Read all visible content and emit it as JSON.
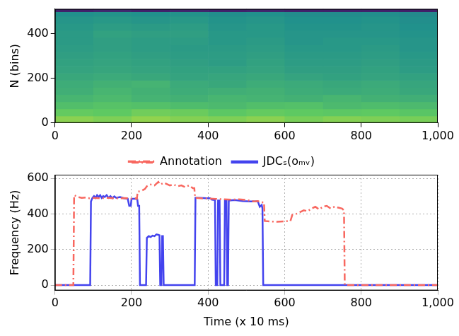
{
  "chart_data": [
    {
      "type": "heatmap",
      "y_label": "N (bins)",
      "xlim": [
        0,
        1000
      ],
      "xticks": [
        0,
        200,
        400,
        600,
        800,
        1000
      ],
      "ylim": [
        0,
        512
      ],
      "yticks": [
        0,
        200,
        400
      ],
      "grid": false,
      "x_edges": [
        0,
        100,
        200,
        300,
        400,
        500,
        600,
        700,
        800,
        900,
        1000
      ],
      "y_edges": [
        0,
        32,
        64,
        96,
        128,
        160,
        192,
        224,
        256,
        288,
        320,
        352,
        384,
        416,
        448,
        480,
        500,
        512
      ],
      "color_range": [
        0,
        1
      ],
      "cells": [
        [
          0.82,
          0.8,
          0.83,
          0.81,
          0.8,
          0.82,
          0.79,
          0.81,
          0.8,
          0.79
        ],
        [
          0.76,
          0.75,
          0.78,
          0.77,
          0.74,
          0.76,
          0.75,
          0.74,
          0.75,
          0.73
        ],
        [
          0.7,
          0.72,
          0.71,
          0.69,
          0.68,
          0.7,
          0.71,
          0.68,
          0.69,
          0.68
        ],
        [
          0.66,
          0.68,
          0.65,
          0.64,
          0.66,
          0.65,
          0.64,
          0.66,
          0.64,
          0.63
        ],
        [
          0.63,
          0.66,
          0.64,
          0.62,
          0.63,
          0.64,
          0.62,
          0.61,
          0.62,
          0.6
        ],
        [
          0.62,
          0.64,
          0.65,
          0.61,
          0.6,
          0.62,
          0.61,
          0.6,
          0.61,
          0.59
        ],
        [
          0.6,
          0.61,
          0.6,
          0.58,
          0.59,
          0.6,
          0.58,
          0.57,
          0.58,
          0.57
        ],
        [
          0.58,
          0.59,
          0.58,
          0.57,
          0.57,
          0.58,
          0.56,
          0.56,
          0.57,
          0.55
        ],
        [
          0.57,
          0.58,
          0.57,
          0.56,
          0.55,
          0.57,
          0.55,
          0.55,
          0.56,
          0.54
        ],
        [
          0.56,
          0.57,
          0.56,
          0.55,
          0.55,
          0.56,
          0.54,
          0.54,
          0.55,
          0.53
        ],
        [
          0.55,
          0.56,
          0.55,
          0.54,
          0.54,
          0.55,
          0.53,
          0.53,
          0.54,
          0.52
        ],
        [
          0.54,
          0.56,
          0.55,
          0.55,
          0.53,
          0.54,
          0.52,
          0.53,
          0.53,
          0.52
        ],
        [
          0.54,
          0.57,
          0.56,
          0.56,
          0.53,
          0.53,
          0.52,
          0.52,
          0.52,
          0.51
        ],
        [
          0.53,
          0.55,
          0.54,
          0.55,
          0.52,
          0.53,
          0.51,
          0.51,
          0.52,
          0.5
        ],
        [
          0.52,
          0.53,
          0.52,
          0.53,
          0.51,
          0.52,
          0.5,
          0.5,
          0.51,
          0.49
        ],
        [
          0.5,
          0.51,
          0.5,
          0.51,
          0.49,
          0.5,
          0.48,
          0.48,
          0.49,
          0.47
        ],
        [
          0.1,
          0.12,
          0.1,
          0.11,
          0.1,
          0.11,
          0.1,
          0.1,
          0.1,
          0.09
        ]
      ]
    },
    {
      "type": "line",
      "x_label": "Time (x 10 ms)",
      "y_label": "Frequency (Hz)",
      "xlim": [
        0,
        1000
      ],
      "xticks": [
        0,
        200,
        400,
        600,
        800,
        1000
      ],
      "ylim": [
        -30,
        620
      ],
      "yticks": [
        0,
        200,
        400,
        600
      ],
      "grid": true,
      "legend": "top",
      "series": [
        {
          "name": "Annotation",
          "color": "#f8675f",
          "line_style": "dashdot",
          "x": [
            0,
            48,
            50,
            55,
            60,
            70,
            80,
            90,
            100,
            120,
            140,
            160,
            180,
            200,
            210,
            214,
            216,
            225,
            235,
            240,
            250,
            260,
            270,
            275,
            285,
            300,
            310,
            320,
            330,
            340,
            350,
            360,
            364,
            366,
            380,
            400,
            420,
            440,
            460,
            480,
            500,
            520,
            530,
            540,
            546,
            548,
            560,
            580,
            600,
            610,
            615,
            620,
            630,
            640,
            650,
            660,
            670,
            680,
            690,
            700,
            710,
            720,
            730,
            740,
            750,
            755,
            757,
            800,
            1000
          ],
          "values": [
            0,
            0,
            505,
            500,
            495,
            490,
            492,
            488,
            490,
            488,
            490,
            487,
            489,
            486,
            488,
            485,
            525,
            528,
            540,
            555,
            565,
            560,
            580,
            565,
            575,
            560,
            565,
            555,
            560,
            550,
            560,
            545,
            545,
            490,
            488,
            486,
            484,
            482,
            480,
            482,
            478,
            470,
            472,
            465,
            465,
            360,
            358,
            356,
            358,
            360,
            360,
            395,
            400,
            410,
            420,
            415,
            430,
            440,
            425,
            440,
            445,
            430,
            440,
            435,
            430,
            420,
            0,
            0,
            0
          ]
        },
        {
          "name": "JDCₛ(oₘᵥ)",
          "color": "#4343ee",
          "line_style": "solid",
          "x": [
            0,
            92,
            94,
            98,
            102,
            106,
            110,
            114,
            118,
            122,
            126,
            130,
            135,
            140,
            145,
            150,
            155,
            160,
            170,
            180,
            190,
            194,
            198,
            200,
            210,
            215,
            217,
            220,
            222,
            238,
            240,
            245,
            250,
            255,
            260,
            265,
            270,
            273,
            275,
            278,
            280,
            282,
            284,
            365,
            367,
            380,
            395,
            405,
            410,
            418,
            420,
            424,
            426,
            430,
            432,
            442,
            444,
            448,
            450,
            452,
            454,
            470,
            490,
            510,
            530,
            535,
            540,
            542,
            544,
            1000
          ],
          "values": [
            0,
            0,
            470,
            490,
            500,
            490,
            505,
            495,
            505,
            490,
            500,
            495,
            505,
            490,
            500,
            488,
            498,
            490,
            495,
            488,
            485,
            445,
            445,
            485,
            485,
            482,
            445,
            445,
            0,
            0,
            265,
            275,
            270,
            278,
            275,
            285,
            282,
            280,
            0,
            0,
            275,
            275,
            0,
            0,
            490,
            490,
            488,
            488,
            480,
            478,
            0,
            0,
            475,
            475,
            0,
            0,
            478,
            478,
            0,
            0,
            475,
            478,
            472,
            470,
            470,
            440,
            450,
            430,
            0,
            0
          ]
        }
      ]
    }
  ]
}
